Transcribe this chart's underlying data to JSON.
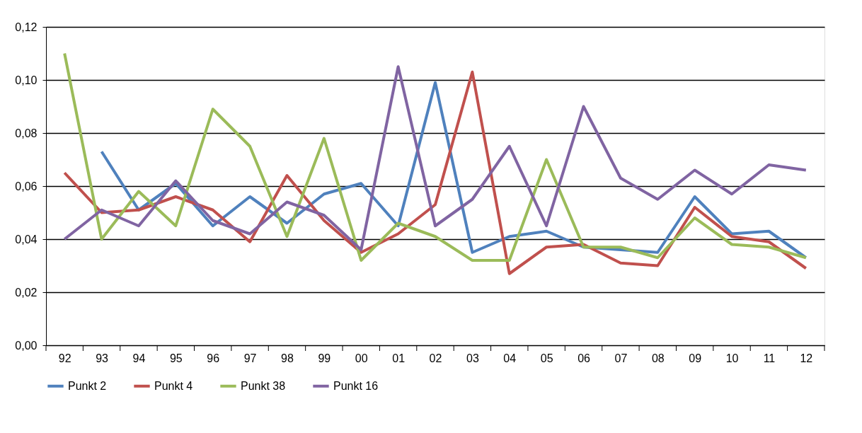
{
  "chart_data": {
    "type": "line",
    "categories": [
      "92",
      "93",
      "94",
      "95",
      "96",
      "97",
      "98",
      "99",
      "00",
      "01",
      "02",
      "03",
      "04",
      "05",
      "06",
      "07",
      "08",
      "09",
      "10",
      "11",
      "12"
    ],
    "series": [
      {
        "name": "Punkt 2",
        "color": "#4f81bd",
        "values": [
          null,
          0.073,
          0.051,
          0.061,
          0.045,
          0.056,
          0.046,
          0.057,
          0.061,
          0.045,
          0.099,
          0.035,
          0.041,
          0.043,
          0.037,
          0.036,
          0.035,
          0.056,
          0.042,
          0.043,
          0.033
        ]
      },
      {
        "name": "Punkt 4",
        "color": "#c0504d",
        "values": [
          0.065,
          0.05,
          0.051,
          0.056,
          0.051,
          0.039,
          0.064,
          0.047,
          0.035,
          0.042,
          0.053,
          0.103,
          0.027,
          0.037,
          0.038,
          0.031,
          0.03,
          0.052,
          0.041,
          0.039,
          0.029
        ]
      },
      {
        "name": "Punkt 38",
        "color": "#9bbb59",
        "values": [
          0.11,
          0.04,
          0.058,
          0.045,
          0.089,
          0.075,
          0.041,
          0.078,
          0.032,
          0.046,
          0.041,
          0.032,
          0.032,
          0.07,
          0.037,
          0.037,
          0.033,
          0.048,
          0.038,
          0.037,
          0.033
        ]
      },
      {
        "name": "Punkt 16",
        "color": "#8064a2",
        "values": [
          0.04,
          0.051,
          0.045,
          0.062,
          0.047,
          0.042,
          0.054,
          0.049,
          0.036,
          0.105,
          0.045,
          0.055,
          0.075,
          0.045,
          0.09,
          0.063,
          0.055,
          0.066,
          0.057,
          0.068,
          0.066
        ]
      }
    ],
    "ylim": [
      0,
      0.12
    ],
    "yticks": [
      {
        "value": 0,
        "label": "0,00"
      },
      {
        "value": 0.02,
        "label": "0,02"
      },
      {
        "value": 0.04,
        "label": "0,04"
      },
      {
        "value": 0.06,
        "label": "0,06"
      },
      {
        "value": 0.08,
        "label": "0,08"
      },
      {
        "value": 0.1,
        "label": "0,10"
      },
      {
        "value": 0.12,
        "label": "0,12"
      }
    ],
    "grid": "y",
    "legend": "bottom",
    "marker": "none",
    "line_style": "solid"
  }
}
